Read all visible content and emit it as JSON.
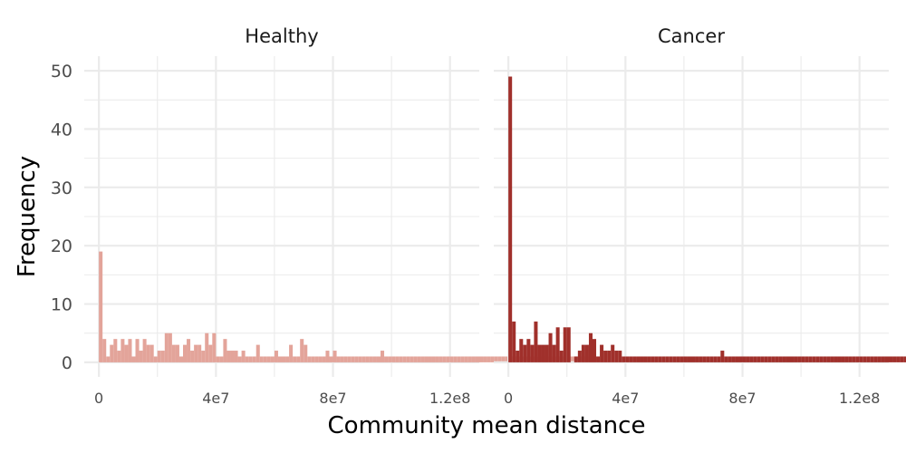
{
  "chart_data": {
    "type": "bar",
    "subtype": "faceted-histogram",
    "xlabel": "Community mean distance",
    "ylabel": "Frequency",
    "xlim": [
      -5000000,
      130000000
    ],
    "ylim": [
      -2.5,
      52.5
    ],
    "x_ticks": [
      0,
      40000000,
      80000000,
      120000000
    ],
    "x_tick_labels": [
      "0",
      "4e7",
      "8e7",
      "1.2e8"
    ],
    "y_ticks": [
      0,
      10,
      20,
      30,
      40,
      50
    ],
    "y_tick_labels": [
      "0",
      "10",
      "20",
      "30",
      "40",
      "50"
    ],
    "grid": true,
    "bin_width": 1250000,
    "bin_start": 0,
    "panels": [
      {
        "name": "Healthy",
        "color": "#e3a49a",
        "counts": [
          19,
          4,
          1,
          3,
          4,
          2,
          4,
          3,
          4,
          1,
          4,
          2,
          4,
          3,
          3,
          1,
          2,
          2,
          5,
          5,
          3,
          3,
          1,
          3,
          4,
          2,
          3,
          3,
          2,
          5,
          3,
          5,
          1,
          1,
          4,
          2,
          2,
          2,
          1,
          2,
          1,
          1,
          1,
          3,
          1,
          1,
          1,
          1,
          2,
          1,
          1,
          1,
          3,
          1,
          1,
          4,
          3,
          1,
          1,
          1,
          1,
          1,
          2,
          1,
          2,
          1,
          1,
          1,
          1,
          1,
          1,
          1,
          1,
          1,
          1,
          1,
          1,
          2,
          1,
          1,
          1,
          1,
          1,
          1,
          1,
          1,
          1,
          1,
          1,
          1,
          1,
          1,
          1,
          1,
          1,
          1,
          1,
          1,
          1,
          1,
          1,
          1,
          1,
          1,
          1,
          1,
          1,
          1,
          1,
          1,
          1,
          1,
          1,
          1,
          1,
          1,
          1,
          1,
          1,
          1,
          1,
          1,
          1,
          1,
          1,
          1,
          1,
          1,
          1,
          1,
          1,
          1,
          1,
          1,
          1,
          1,
          1
        ]
      },
      {
        "name": "Cancer",
        "color": "#a0302b",
        "counts": [
          49,
          7,
          2,
          4,
          3,
          4,
          3,
          7,
          3,
          3,
          3,
          5,
          3,
          6,
          2,
          6,
          6,
          0,
          1,
          2,
          3,
          3,
          5,
          4,
          1,
          3,
          2,
          2,
          3,
          2,
          2,
          1,
          1,
          1,
          1,
          1,
          1,
          1,
          1,
          1,
          1,
          1,
          1,
          1,
          1,
          1,
          1,
          1,
          1,
          1,
          1,
          1,
          1,
          1,
          1,
          1,
          1,
          1,
          2,
          1,
          1,
          1,
          1,
          1,
          1,
          1,
          1,
          1,
          1,
          1,
          1,
          1,
          1,
          1,
          1,
          1,
          1,
          1,
          1,
          1,
          1,
          1,
          1,
          1,
          1,
          1,
          1,
          1,
          1,
          1,
          1,
          1,
          1,
          1,
          1,
          1,
          1,
          1,
          1,
          1,
          1,
          1,
          1,
          1,
          1,
          1,
          1,
          1,
          1,
          1,
          1,
          1,
          1,
          1,
          1,
          1,
          1,
          1,
          1,
          1,
          1,
          1,
          1,
          1,
          1,
          1,
          1,
          1,
          1,
          1,
          1,
          1,
          1,
          1,
          1,
          1,
          1
        ]
      }
    ]
  }
}
